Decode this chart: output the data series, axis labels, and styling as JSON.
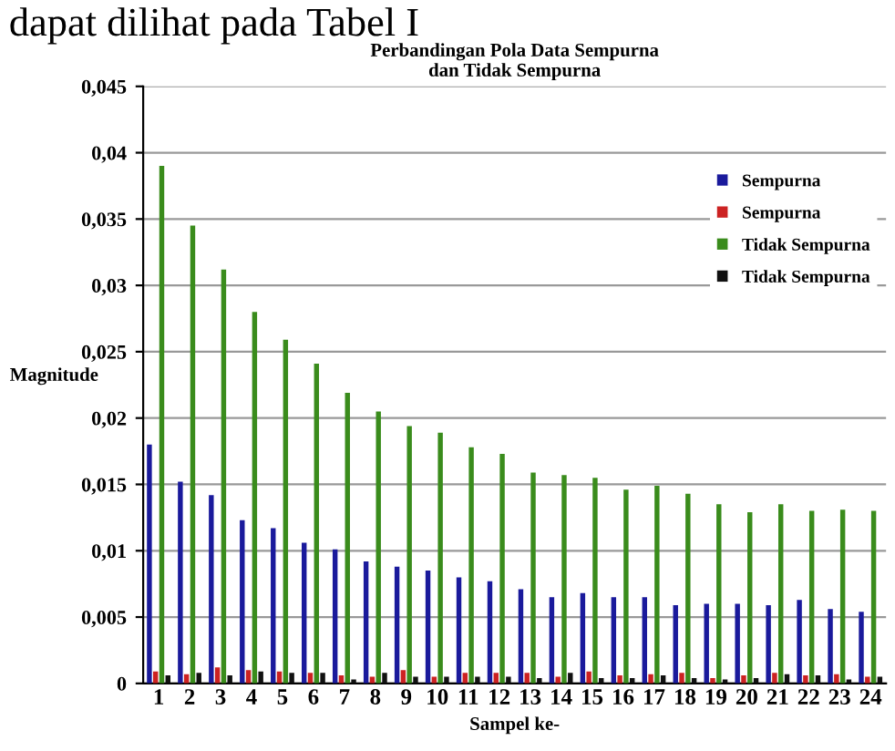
{
  "chart_data": {
    "type": "bar",
    "title": "Perbandingan Pola Data Sempurna\ndan Tidak Sempurna",
    "xlabel": "Sampel ke-",
    "ylabel": "Magnitude",
    "annotations": [
      "dapat dilihat pada Tabel I"
    ],
    "categories": [
      "1",
      "2",
      "3",
      "4",
      "5",
      "6",
      "7",
      "8",
      "9",
      "10",
      "11",
      "12",
      "13",
      "14",
      "15",
      "16",
      "17",
      "18",
      "19",
      "20",
      "21",
      "22",
      "23",
      "24"
    ],
    "series": [
      {
        "name": "Sempurna",
        "color": "#1a1a9c",
        "values": [
          0.018,
          0.0152,
          0.0142,
          0.0123,
          0.0117,
          0.0106,
          0.0101,
          0.0092,
          0.0088,
          0.0085,
          0.008,
          0.0077,
          0.0071,
          0.0065,
          0.0068,
          0.0065,
          0.0065,
          0.0059,
          0.006,
          0.006,
          0.0059,
          0.0063,
          0.0056,
          0.0054
        ]
      },
      {
        "name": "Sempurna",
        "color": "#cc2222",
        "values": [
          0.0009,
          0.0007,
          0.0012,
          0.001,
          0.0009,
          0.0008,
          0.0006,
          0.0005,
          0.001,
          0.0005,
          0.0008,
          0.0008,
          0.0008,
          0.0005,
          0.0009,
          0.0006,
          0.0007,
          0.0008,
          0.0004,
          0.0006,
          0.0008,
          0.0006,
          0.0007,
          0.0005
        ]
      },
      {
        "name": "Tidak Sempurna",
        "color": "#3a8c1c",
        "values": [
          0.039,
          0.0345,
          0.0312,
          0.028,
          0.0259,
          0.0241,
          0.0219,
          0.0205,
          0.0194,
          0.0189,
          0.0178,
          0.0173,
          0.0159,
          0.0157,
          0.0155,
          0.0146,
          0.0149,
          0.0143,
          0.0135,
          0.0129,
          0.0135,
          0.013,
          0.0131,
          0.013
        ]
      },
      {
        "name": "Tidak Sempurna",
        "color": "#111111",
        "values": [
          0.0006,
          0.0008,
          0.0006,
          0.0009,
          0.0008,
          0.0008,
          0.0003,
          0.0008,
          0.0005,
          0.0005,
          0.0005,
          0.0005,
          0.0004,
          0.0008,
          0.0004,
          0.0004,
          0.0006,
          0.0004,
          0.0003,
          0.0004,
          0.0007,
          0.0006,
          0.0003,
          0.0005
        ]
      }
    ],
    "ylim": [
      0,
      0.045
    ],
    "yticks": [
      0,
      {
        "value": 0.005,
        "label": "0,005"
      },
      {
        "value": 0.01,
        "label": "0,01"
      },
      {
        "value": 0.015,
        "label": "0,015"
      },
      {
        "value": 0.02,
        "label": "0,02"
      },
      {
        "value": 0.025,
        "label": "0,025"
      },
      {
        "value": 0.03,
        "label": "0,03"
      },
      {
        "value": 0.035,
        "label": "0,035"
      },
      {
        "value": 0.04,
        "label": "0,04"
      },
      {
        "value": 0.045,
        "label": "0,045"
      }
    ],
    "grid": "y",
    "legend": "top right"
  }
}
